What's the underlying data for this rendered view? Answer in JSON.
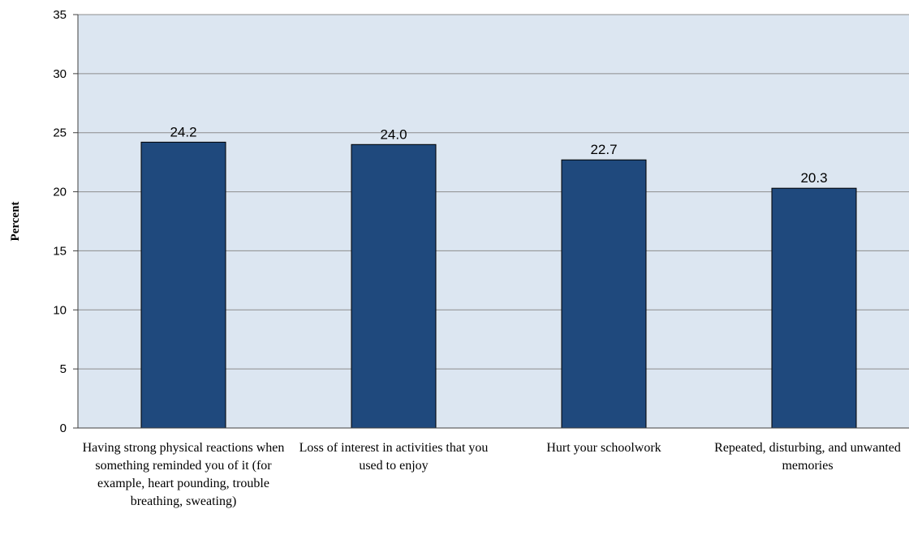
{
  "chart_data": {
    "type": "bar",
    "categories": [
      "Having strong physical reactions when something reminded you of it (for example, heart pounding, trouble breathing, sweating)",
      "Loss of interest in activities that you used to enjoy",
      "Hurt your schoolwork",
      "Repeated, disturbing, and unwanted memories"
    ],
    "values": [
      24.2,
      24.0,
      22.7,
      20.3
    ],
    "data_labels": [
      "24.2",
      "24.0",
      "22.7",
      "20.3"
    ],
    "title": "",
    "xlabel": "",
    "ylabel": "Percent",
    "ylim": [
      0,
      35
    ],
    "yticks": [
      0,
      5,
      10,
      15,
      20,
      25,
      30,
      35
    ],
    "grid": true,
    "legend": "none",
    "colors": {
      "plot_background": "#dce6f1",
      "bar_fill": "#1f497d",
      "bar_stroke": "#000000",
      "gridline": "#8c8c8c",
      "axis": "#404040"
    }
  }
}
